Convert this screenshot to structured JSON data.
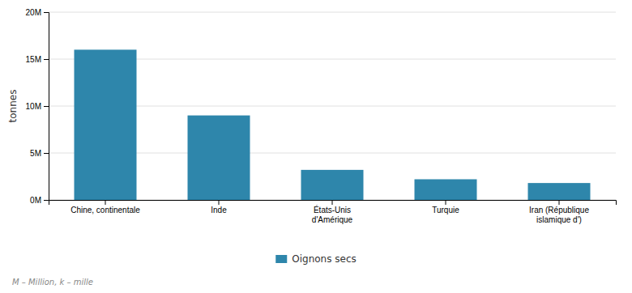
{
  "chart_data": {
    "type": "bar",
    "categories": [
      "Chine, continentale",
      "Inde",
      "États-Unis\nd'Amérique",
      "Turquie",
      "Iran (République\nislamique d')"
    ],
    "series": [
      {
        "name": "Oignons secs",
        "color": "#2e86ab",
        "values": [
          16000000,
          9000000,
          3200000,
          2200000,
          1800000
        ]
      }
    ],
    "ylabel": "tonnes",
    "ylim": [
      0,
      20000000
    ],
    "yticks": [
      {
        "value": 0,
        "label": "0M"
      },
      {
        "value": 5000000,
        "label": "5M"
      },
      {
        "value": 10000000,
        "label": "10M"
      },
      {
        "value": 15000000,
        "label": "15M"
      },
      {
        "value": 20000000,
        "label": "20M"
      }
    ],
    "grid": true,
    "legend": "bottom",
    "annotations": [
      "M – Million, k – mille"
    ]
  }
}
